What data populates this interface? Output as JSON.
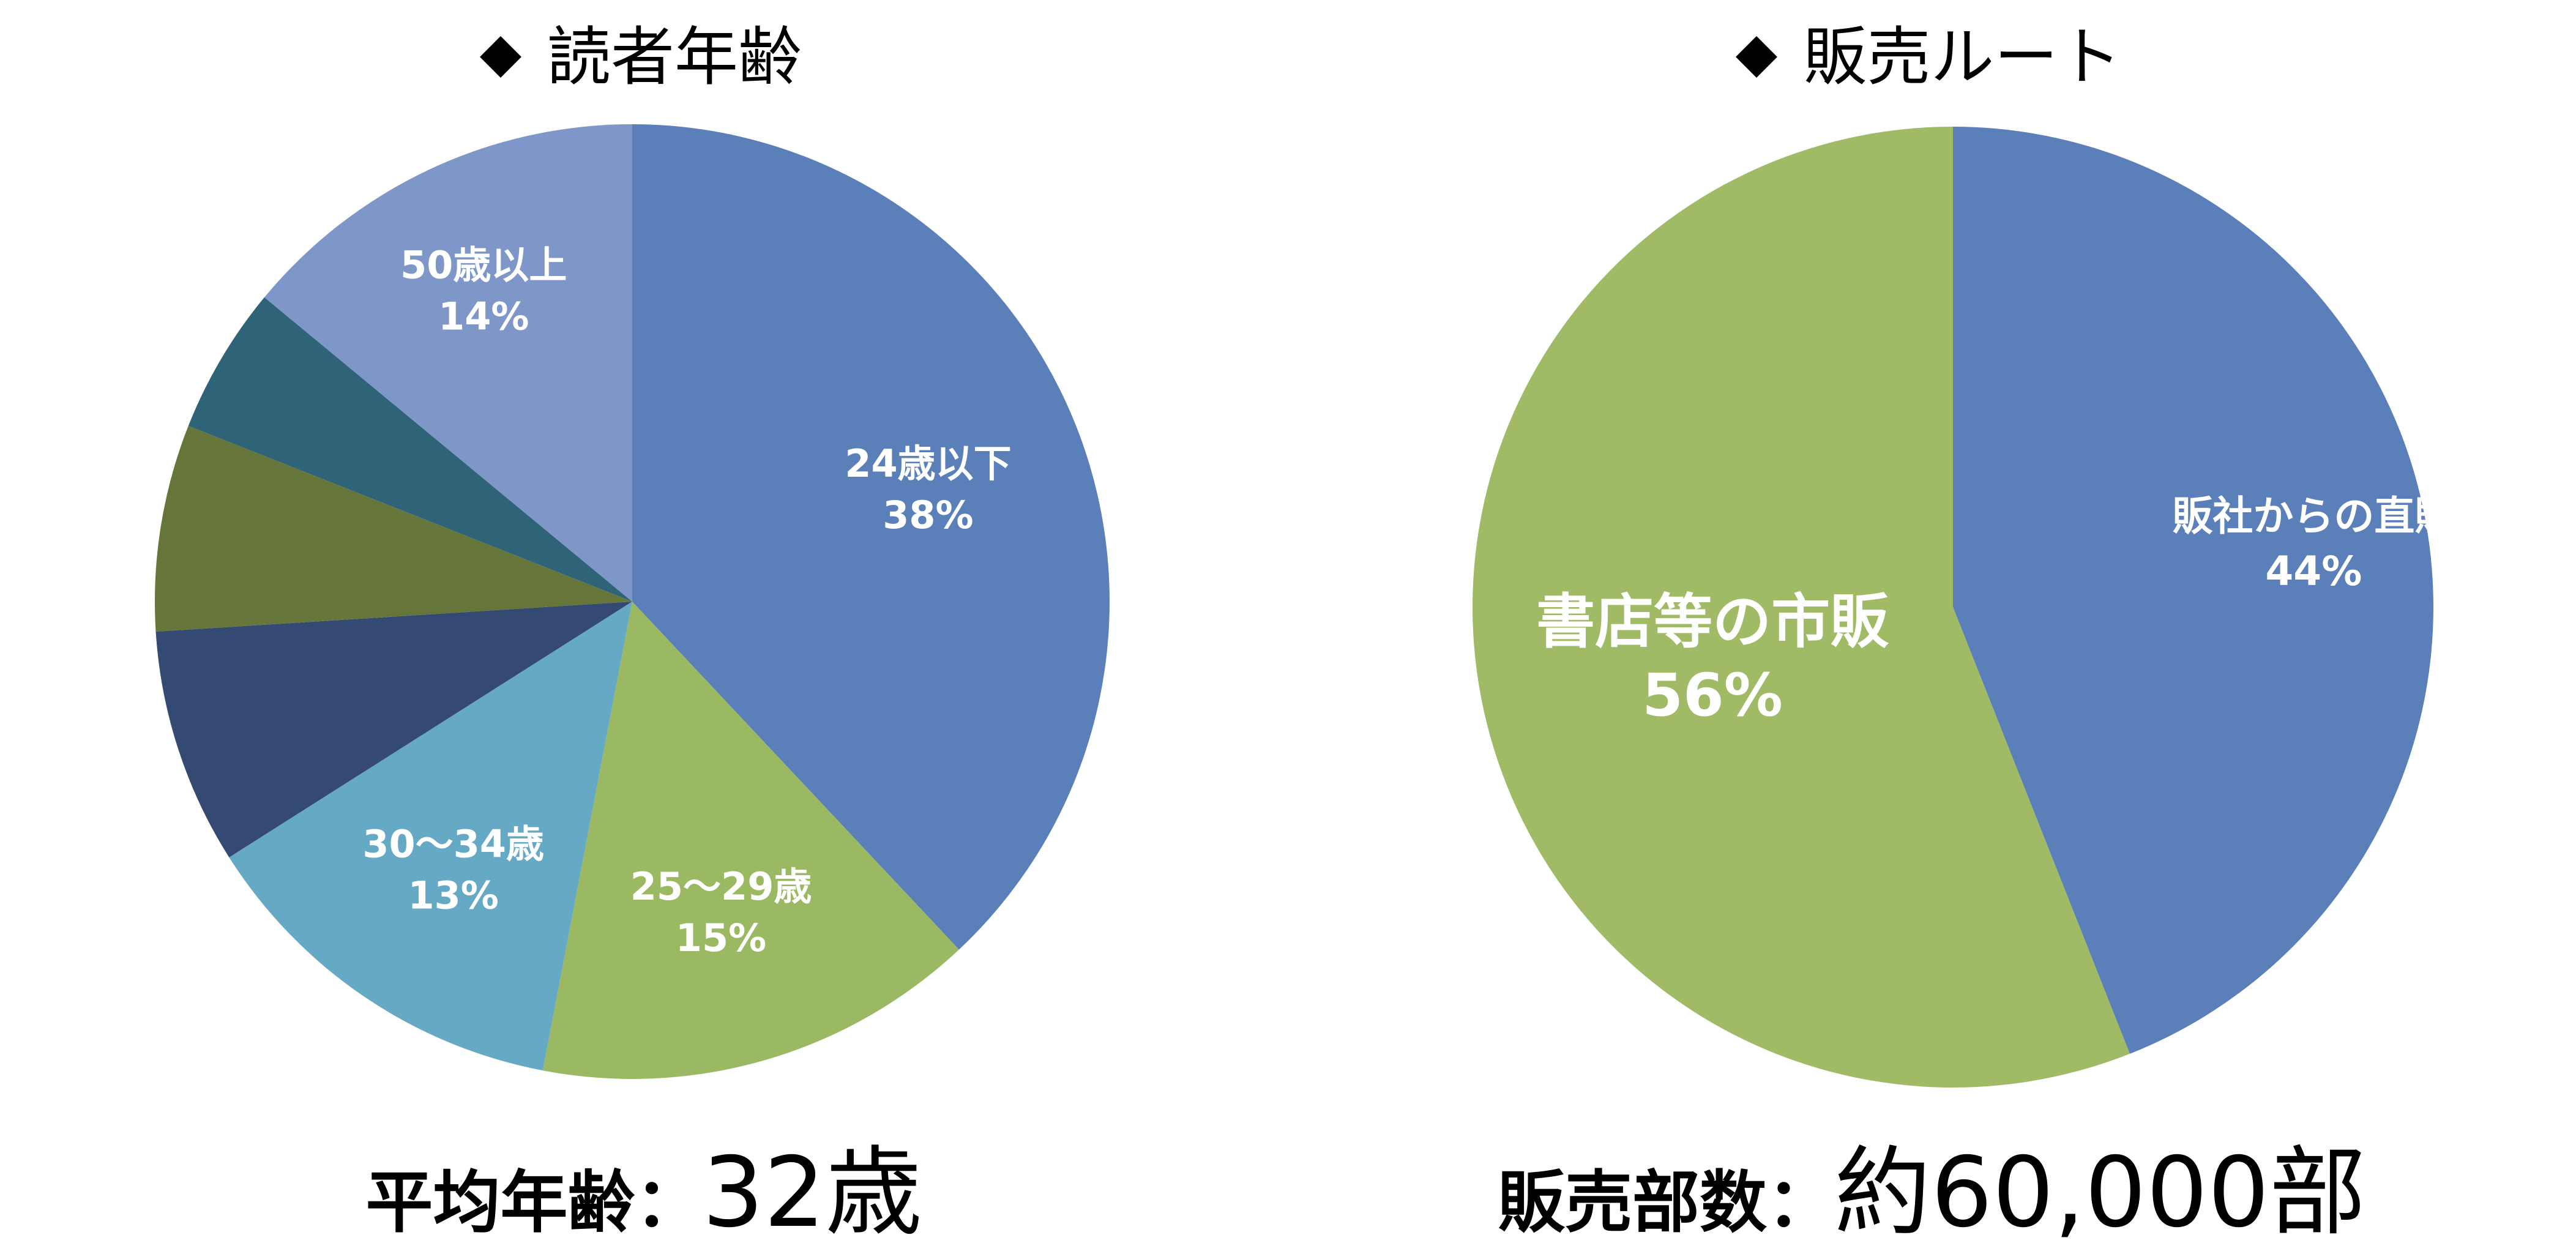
{
  "chart_data": [
    {
      "type": "pie",
      "title": "読者年齢",
      "slices": [
        {
          "label": "24歳以下",
          "value": 38,
          "pct_label": "38%",
          "color": "#5B7FB8"
        },
        {
          "label": "25〜29歳",
          "value": 15,
          "pct_label": "15%",
          "color": "#9BB862"
        },
        {
          "label": "30〜34歳",
          "value": 13,
          "pct_label": "13%",
          "color": "#65A9C4"
        },
        {
          "label": "",
          "value": 8,
          "pct_label": "",
          "color": "#344A73"
        },
        {
          "label": "",
          "value": 7,
          "pct_label": "",
          "color": "#66763A"
        },
        {
          "label": "",
          "value": 5,
          "pct_label": "",
          "color": "#2F6478"
        },
        {
          "label": "50歳以上",
          "value": 14,
          "pct_label": "14%",
          "color": "#7E97C8"
        }
      ],
      "footer_label": "平均年齢：",
      "footer_value": "32歳"
    },
    {
      "type": "pie",
      "title": "販売ルート",
      "slices": [
        {
          "label": "販社からの直販",
          "value": 44,
          "pct_label": "44%",
          "color": "#5B7FB8"
        },
        {
          "label": "書店等の市販",
          "value": 56,
          "pct_label": "56%",
          "color": "#A0BA66"
        }
      ],
      "footer_label": "販売部数：",
      "footer_value": "約60,000部"
    }
  ]
}
